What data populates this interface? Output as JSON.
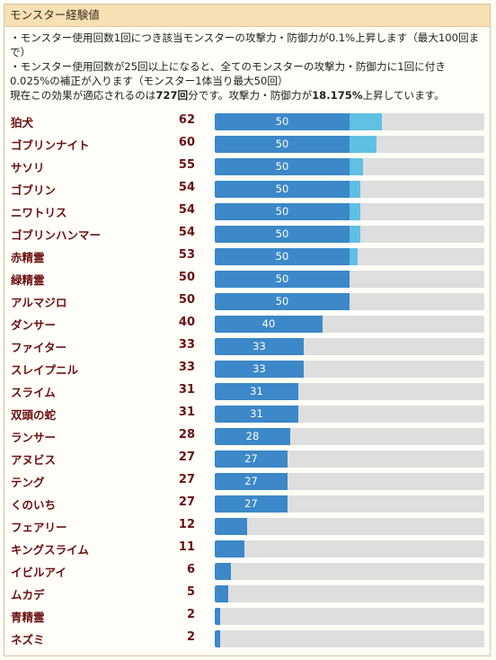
{
  "panel": {
    "title": "モンスター経験値",
    "desc1": "・モンスター使用回数1回につき該当モンスターの攻撃力・防御力が0.1%上昇します（最大100回まで）",
    "desc2": "・モンスター使用回数が25回以上になると、全てのモンスターの攻撃力・防御力に1回に付き0.025%の補正が入ります（モンスター1体当り最大50回）",
    "desc3_a": "現在この効果が適応されるのは",
    "desc3_b": "727回",
    "desc3_c": "分です。攻撃力・防御力が",
    "desc3_d": "18.175%",
    "desc3_e": "上昇しています。"
  },
  "bar_max": 100,
  "bar_cap": 50,
  "colors": {
    "cap_fill": "#3c88c8",
    "extra_fill": "#5fc0e3",
    "track": "#dedede",
    "name_text": "#6b1010"
  },
  "monsters": [
    {
      "name": "狛犬",
      "count": 62
    },
    {
      "name": "ゴブリンナイト",
      "count": 60
    },
    {
      "name": "サソリ",
      "count": 55
    },
    {
      "name": "ゴブリン",
      "count": 54
    },
    {
      "name": "ニワトリス",
      "count": 54
    },
    {
      "name": "ゴブリンハンマー",
      "count": 54
    },
    {
      "name": "赤精霊",
      "count": 53
    },
    {
      "name": "緑精霊",
      "count": 50
    },
    {
      "name": "アルマジロ",
      "count": 50
    },
    {
      "name": "ダンサー",
      "count": 40
    },
    {
      "name": "ファイター",
      "count": 33
    },
    {
      "name": "スレイプニル",
      "count": 33
    },
    {
      "name": "スライム",
      "count": 31
    },
    {
      "name": "双頭の蛇",
      "count": 31
    },
    {
      "name": "ランサー",
      "count": 28
    },
    {
      "name": "アヌビス",
      "count": 27
    },
    {
      "name": "テング",
      "count": 27
    },
    {
      "name": "くのいち",
      "count": 27
    },
    {
      "name": "フェアリー",
      "count": 12
    },
    {
      "name": "キングスライム",
      "count": 11
    },
    {
      "name": "イビルアイ",
      "count": 6
    },
    {
      "name": "ムカデ",
      "count": 5
    },
    {
      "name": "青精霊",
      "count": 2
    },
    {
      "name": "ネズミ",
      "count": 2
    }
  ]
}
